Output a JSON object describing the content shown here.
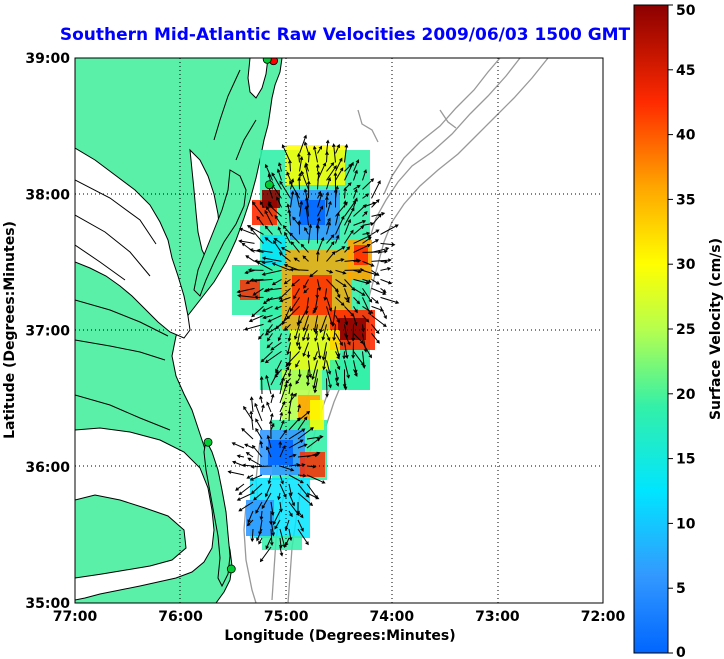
{
  "title": "Southern Mid-Atlantic Raw Velocities 2009/06/03 1500 GMT",
  "axes": {
    "xlabel": "Longitude (Degrees:Minutes)",
    "ylabel": "Latitude (Degrees:Minutes)",
    "x_ticks": [
      "77:00",
      "76:00",
      "75:00",
      "74:00",
      "73:00",
      "72:00"
    ],
    "y_ticks": [
      "39:00",
      "38:00",
      "37:00",
      "36:00",
      "35:00"
    ],
    "xlim": [
      -77,
      -72
    ],
    "ylim": [
      35,
      39
    ]
  },
  "colorbar": {
    "label": "Surface Velocity (cm/s)",
    "ticks": [
      "50",
      "45",
      "40",
      "35",
      "30",
      "25",
      "20",
      "15",
      "10",
      "5",
      "0"
    ],
    "range": [
      0,
      50
    ]
  },
  "colors": {
    "title": "#0000ff",
    "land": "#5af0a8",
    "coast_line": "#000000",
    "bathymetry": "#999999",
    "grid": "#000000",
    "station": "#00cc33",
    "station_alt": "#ff0000"
  },
  "stations": [
    {
      "lon": -75.12,
      "lat": 38.98,
      "color": "station_alt"
    },
    {
      "lon": -75.18,
      "lat": 38.99,
      "color": "station"
    },
    {
      "lon": -75.16,
      "lat": 38.07,
      "color": "station"
    },
    {
      "lon": -75.74,
      "lat": 36.18,
      "color": "station"
    },
    {
      "lon": -75.52,
      "lat": 35.25,
      "color": "station"
    }
  ],
  "field_regions": [
    {
      "region": "north",
      "lon_range": [
        -75.3,
        -74.1
      ],
      "lat_range": [
        36.6,
        38.3
      ]
    },
    {
      "region": "south",
      "lon_range": [
        -75.4,
        -74.8
      ],
      "lat_range": [
        35.4,
        36.6
      ]
    }
  ]
}
